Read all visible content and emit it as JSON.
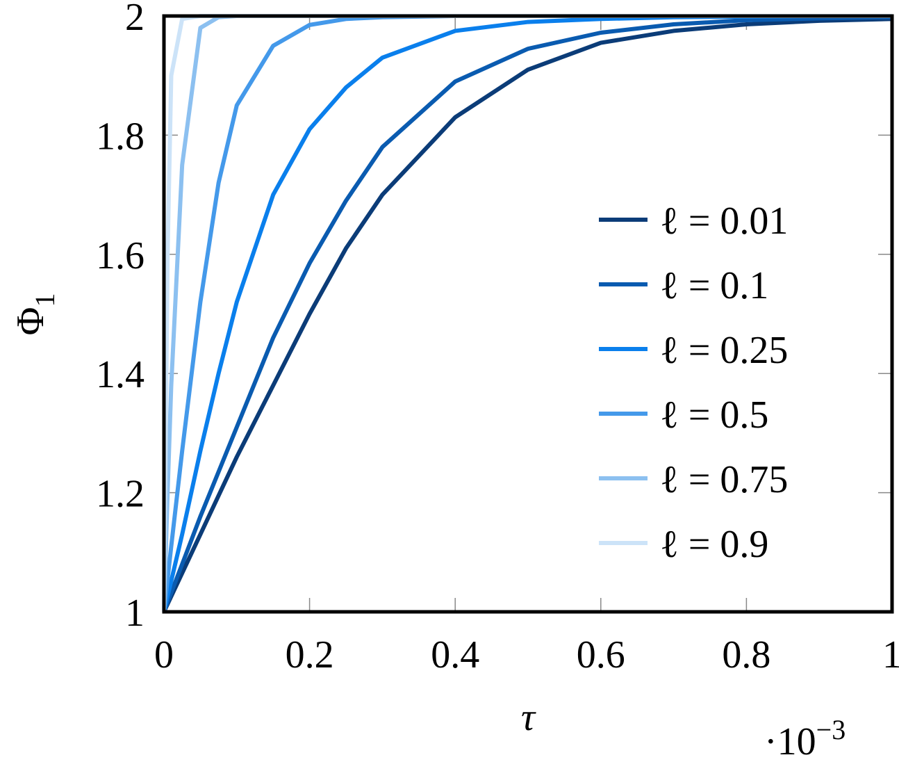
{
  "chart_data": {
    "type": "line",
    "xlabel": "τ",
    "x_multiplier": {
      "base": "·10",
      "exponent": "−3"
    },
    "ylabel": {
      "symbol": "Φ",
      "subscript": "1"
    },
    "x": [
      0,
      0.005,
      0.01,
      0.025,
      0.05,
      0.075,
      0.1,
      0.15,
      0.2,
      0.25,
      0.3,
      0.4,
      0.5,
      0.6,
      0.7,
      0.8,
      0.9,
      1
    ],
    "series": [
      {
        "name": "ℓ = 0.01",
        "color": "#0b3c78",
        "values": [
          1,
          1.013,
          1.026,
          1.065,
          1.13,
          1.195,
          1.26,
          1.38,
          1.5,
          1.61,
          1.7,
          1.83,
          1.91,
          1.955,
          1.975,
          1.986,
          1.992,
          1.995
        ]
      },
      {
        "name": "ℓ = 0.1",
        "color": "#0a5bb0",
        "values": [
          1,
          1.016,
          1.032,
          1.08,
          1.16,
          1.235,
          1.31,
          1.46,
          1.585,
          1.69,
          1.78,
          1.89,
          1.945,
          1.972,
          1.986,
          1.993,
          1.996,
          1.998
        ]
      },
      {
        "name": "ℓ = 0.25",
        "color": "#0a7fec",
        "values": [
          1,
          1.026,
          1.052,
          1.13,
          1.27,
          1.4,
          1.52,
          1.7,
          1.81,
          1.88,
          1.93,
          1.975,
          1.99,
          1.995,
          1.998,
          1.999,
          2,
          2
        ]
      },
      {
        "name": "ℓ = 0.5",
        "color": "#4499ea",
        "values": [
          1,
          1.055,
          1.11,
          1.27,
          1.52,
          1.72,
          1.85,
          1.95,
          1.985,
          1.995,
          1.998,
          2,
          2,
          2,
          2,
          2,
          2,
          2
        ]
      },
      {
        "name": "ℓ = 0.75",
        "color": "#8cc0f0",
        "values": [
          1,
          1.2,
          1.38,
          1.75,
          1.98,
          1.998,
          2,
          2,
          2,
          2,
          2,
          2,
          2,
          2,
          2,
          2,
          2,
          2
        ]
      },
      {
        "name": "ℓ = 0.9",
        "color": "#cce3f8",
        "values": [
          1,
          1.6,
          1.9,
          1.995,
          2,
          2,
          2,
          2,
          2,
          2,
          2,
          2,
          2,
          2,
          2,
          2,
          2,
          2
        ]
      }
    ],
    "xlim": [
      0,
      1
    ],
    "xticks": [
      0,
      0.2,
      0.4,
      0.6,
      0.8,
      1
    ],
    "ylim": [
      1,
      2
    ],
    "yticks": [
      1,
      1.2,
      1.4,
      1.6,
      1.8,
      2
    ],
    "legend": "right"
  }
}
